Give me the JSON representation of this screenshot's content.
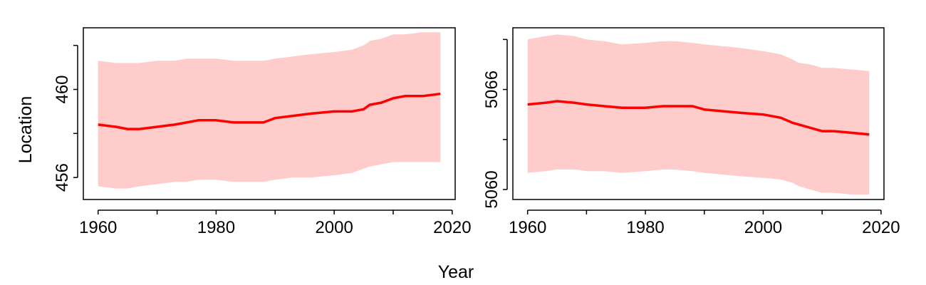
{
  "figure": {
    "ylabel": "Location",
    "xlabel": "Year"
  },
  "chart_data": [
    {
      "type": "line",
      "title": "",
      "xlabel": "Year",
      "ylabel": "Location",
      "xlim": [
        1957.5,
        2020.5
      ],
      "ylim": [
        455.0,
        462.8
      ],
      "x_ticks": [
        1960,
        1980,
        2000,
        2020
      ],
      "x_minor_ticks": [
        1970,
        1990,
        2010
      ],
      "y_ticks": [
        456,
        460
      ],
      "y_minor_ticks": [
        458,
        462
      ],
      "band_color": "#ffcccc",
      "line_color": "#ff0000",
      "grid": false,
      "series": [
        {
          "x": [
            1960,
            1963,
            1965,
            1967,
            1970,
            1973,
            1975,
            1977,
            1980,
            1983,
            1985,
            1988,
            1990,
            1993,
            1996,
            2000,
            2003,
            2005,
            2006,
            2008,
            2010,
            2012,
            2015,
            2018
          ],
          "y": [
            458.4,
            458.3,
            458.2,
            458.2,
            458.3,
            458.4,
            458.5,
            458.6,
            458.6,
            458.5,
            458.5,
            458.5,
            458.7,
            458.8,
            458.9,
            459.0,
            459.0,
            459.1,
            459.3,
            459.4,
            459.6,
            459.7,
            459.7,
            459.8
          ],
          "lower": [
            455.6,
            455.5,
            455.5,
            455.6,
            455.7,
            455.8,
            455.8,
            455.9,
            455.9,
            455.8,
            455.8,
            455.8,
            455.9,
            456.0,
            456.0,
            456.1,
            456.2,
            456.4,
            456.5,
            456.6,
            456.7,
            456.7,
            456.7,
            456.7
          ],
          "upper": [
            461.3,
            461.2,
            461.2,
            461.2,
            461.3,
            461.3,
            461.4,
            461.4,
            461.4,
            461.3,
            461.3,
            461.3,
            461.4,
            461.5,
            461.6,
            461.7,
            461.8,
            462.0,
            462.2,
            462.3,
            462.5,
            462.5,
            462.6,
            462.6
          ]
        }
      ]
    },
    {
      "type": "line",
      "title": "",
      "xlabel": "Year",
      "ylabel": "Location",
      "xlim": [
        1957.5,
        2020.5
      ],
      "ylim": [
        5059.4,
        5069.7
      ],
      "x_ticks": [
        1960,
        1980,
        2000,
        2020
      ],
      "x_minor_ticks": [
        1970,
        1990,
        2010
      ],
      "y_ticks": [
        5060,
        5066
      ],
      "y_minor_ticks": [
        5063,
        5069
      ],
      "band_color": "#ffcccc",
      "line_color": "#ff0000",
      "grid": false,
      "series": [
        {
          "x": [
            1960,
            1963,
            1965,
            1968,
            1970,
            1973,
            1976,
            1980,
            1983,
            1985,
            1988,
            1990,
            1993,
            1996,
            2000,
            2003,
            2005,
            2006,
            2008,
            2010,
            2012,
            2015,
            2018
          ],
          "y": [
            5065.1,
            5065.2,
            5065.3,
            5065.2,
            5065.1,
            5065.0,
            5064.9,
            5064.9,
            5065.0,
            5065.0,
            5065.0,
            5064.8,
            5064.7,
            5064.6,
            5064.5,
            5064.3,
            5064.0,
            5063.9,
            5063.7,
            5063.5,
            5063.5,
            5063.4,
            5063.3
          ],
          "lower": [
            5061.0,
            5061.1,
            5061.2,
            5061.2,
            5061.1,
            5061.1,
            5061.0,
            5061.1,
            5061.2,
            5061.2,
            5061.1,
            5061.0,
            5060.9,
            5060.8,
            5060.7,
            5060.6,
            5060.4,
            5060.2,
            5060.0,
            5059.8,
            5059.8,
            5059.7,
            5059.7
          ],
          "upper": [
            5069.0,
            5069.2,
            5069.3,
            5069.2,
            5069.0,
            5068.9,
            5068.7,
            5068.8,
            5068.9,
            5068.9,
            5068.8,
            5068.7,
            5068.6,
            5068.5,
            5068.3,
            5068.1,
            5067.8,
            5067.6,
            5067.5,
            5067.3,
            5067.3,
            5067.2,
            5067.1
          ]
        }
      ]
    }
  ]
}
